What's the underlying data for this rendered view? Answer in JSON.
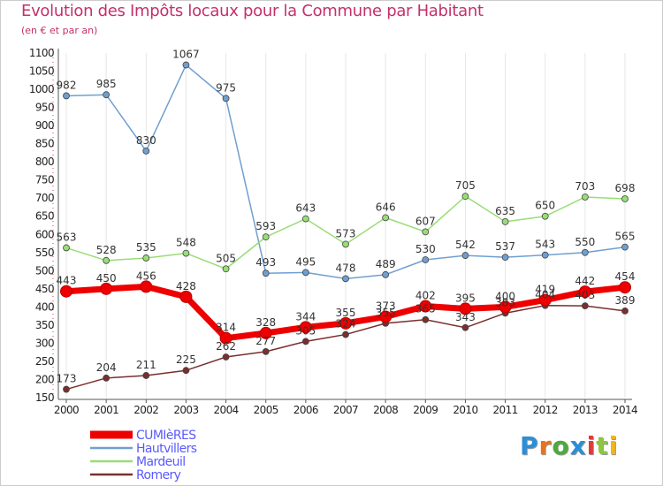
{
  "header": {
    "title": "Evolution des Impôts locaux pour la Commune par Habitant",
    "subtitle": "(en € et par an)"
  },
  "logo": {
    "text": "Proxiti",
    "letter_colors": [
      "#2a8fd6",
      "#e8731c",
      "#4bab3a",
      "#2a8fd6",
      "#e03a3a",
      "#8dc63f",
      "#f2b618"
    ]
  },
  "colors": {
    "title": "#c4306a",
    "legend_text": "#5a5aff",
    "axis": "#555555",
    "grid_dots": "#d94040",
    "background": "#ffffff"
  },
  "chart_data": {
    "type": "line",
    "title": "Evolution des Impôts locaux pour la Commune par Habitant",
    "subtitle": "(en € et par an)",
    "x": [
      2000,
      2001,
      2002,
      2003,
      2004,
      2005,
      2006,
      2007,
      2008,
      2009,
      2010,
      2011,
      2012,
      2013,
      2014
    ],
    "ylim": [
      150,
      1100
    ],
    "yticks": [
      150,
      200,
      250,
      300,
      350,
      400,
      450,
      500,
      550,
      600,
      650,
      700,
      750,
      800,
      850,
      900,
      950,
      1000,
      1050,
      1100
    ],
    "legend_position": "bottom-left",
    "series": [
      {
        "name": "CUMIèRES",
        "color": "#ee0000",
        "values": [
          443,
          450,
          456,
          428,
          314,
          328,
          344,
          355,
          373,
          402,
          395,
          400,
          419,
          442,
          454
        ]
      },
      {
        "name": "Hautvillers",
        "color": "#6f9fd0",
        "values": [
          982,
          985,
          830,
          1067,
          975,
          493,
          495,
          478,
          489,
          530,
          542,
          537,
          543,
          550,
          565
        ]
      },
      {
        "name": "Mardeuil",
        "color": "#99dd77",
        "values": [
          563,
          528,
          535,
          548,
          505,
          593,
          643,
          573,
          646,
          607,
          705,
          635,
          650,
          703,
          698
        ]
      },
      {
        "name": "Romery",
        "color": "#7a2e2e",
        "values": [
          173,
          204,
          211,
          225,
          262,
          277,
          305,
          324,
          355,
          365,
          343,
          383,
          404,
          403,
          389
        ]
      }
    ]
  }
}
